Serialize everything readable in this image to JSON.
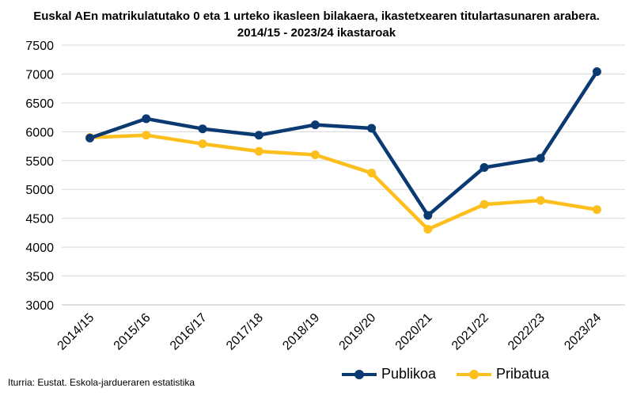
{
  "title_lines": [
    "Euskal AEn matrikulatutako 0 eta 1 urteko ikasleen bilakaera, ikastetxearen titulartasunaren arabera.",
    "2014/15 - 2023/24 ikastaroak"
  ],
  "source": "Iturria: Eustat. Eskola-jardueraren estatistika",
  "chart_data": {
    "type": "line",
    "title": "Euskal AEn matrikulatutako 0 eta 1 urteko ikasleen bilakaera, ikastetxearen titulartasunaren arabera. 2014/15 - 2023/24 ikastaroak",
    "categories": [
      "2014/15",
      "2015/16",
      "2016/17",
      "2017/18",
      "2018/19",
      "2019/20",
      "2020/21",
      "2021/22",
      "2022/23",
      "2023/24"
    ],
    "y_ticks": [
      "3000",
      "3500",
      "4000",
      "4500",
      "5000",
      "5500",
      "6000",
      "6500",
      "7000",
      "7500"
    ],
    "ylim": [
      3000,
      7500
    ],
    "grid": true,
    "legend_position": "bottom-right",
    "series": [
      {
        "name": "Publikoa",
        "color": "#0b3a73",
        "values": [
          5890,
          6225,
          6050,
          5940,
          6120,
          6060,
          4550,
          5380,
          5540,
          7040
        ]
      },
      {
        "name": "Pribatua",
        "color": "#fcbf1e",
        "values": [
          5900,
          5940,
          5790,
          5660,
          5600,
          5285,
          4310,
          4740,
          4810,
          4650
        ]
      }
    ]
  }
}
